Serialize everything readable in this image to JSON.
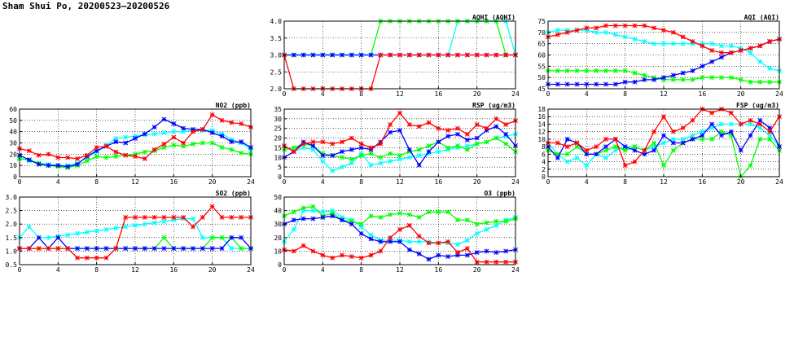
{
  "page": {
    "title": "Sham Shui Po, 20200523–20200526"
  },
  "colors": {
    "red": "#ff0000",
    "blue": "#0000ff",
    "green": "#00ff00",
    "cyan": "#00ffff",
    "grid": "#000000"
  },
  "chart_data": [
    {
      "id": "aqhi",
      "type": "line",
      "title": "AQHI (AQHI)",
      "xlim": [
        0,
        24
      ],
      "ylim": [
        2.0,
        4.0
      ],
      "xticks": [
        "0",
        "4",
        "8",
        "12",
        "16",
        "20",
        "24"
      ],
      "yticks": [
        "2.0",
        "2.5",
        "3.0",
        "3.5",
        "4.0"
      ],
      "x": [
        0,
        1,
        2,
        3,
        4,
        5,
        6,
        7,
        8,
        9,
        10,
        11,
        12,
        13,
        14,
        15,
        16,
        17,
        18,
        19,
        20,
        21,
        22,
        23,
        24
      ],
      "series": [
        {
          "color": "cyan",
          "values": [
            3,
            3,
            3,
            3,
            3,
            3,
            3,
            3,
            3,
            3,
            3,
            3,
            3,
            3,
            3,
            3,
            3,
            3,
            4,
            4,
            4,
            4,
            4,
            4,
            3
          ]
        },
        {
          "color": "green",
          "values": [
            3,
            3,
            3,
            3,
            3,
            3,
            3,
            3,
            3,
            3,
            4,
            4,
            4,
            4,
            4,
            4,
            4,
            4,
            4,
            4,
            4,
            4,
            4,
            3,
            3
          ]
        },
        {
          "color": "blue",
          "values": [
            3,
            3,
            3,
            3,
            3,
            3,
            3,
            3,
            3,
            3,
            3,
            3,
            3,
            3,
            3,
            3,
            3,
            3,
            3,
            3,
            3,
            3,
            3,
            3,
            3
          ]
        },
        {
          "color": "red",
          "values": [
            3,
            2,
            2,
            2,
            2,
            2,
            2,
            2,
            2,
            2,
            3,
            3,
            3,
            3,
            3,
            3,
            3,
            3,
            3,
            3,
            3,
            3,
            3,
            3,
            3
          ]
        }
      ]
    },
    {
      "id": "aqi",
      "type": "line",
      "title": "AQI (AQI)",
      "xlim": [
        0,
        24
      ],
      "ylim": [
        45,
        75
      ],
      "xticks": [
        "0",
        "4",
        "8",
        "12",
        "16",
        "20",
        "24"
      ],
      "yticks": [
        "45",
        "50",
        "55",
        "60",
        "65",
        "70",
        "75"
      ],
      "x": [
        0,
        1,
        2,
        3,
        4,
        5,
        6,
        7,
        8,
        9,
        10,
        11,
        12,
        13,
        14,
        15,
        16,
        17,
        18,
        19,
        20,
        21,
        22,
        23,
        24
      ],
      "series": [
        {
          "color": "cyan",
          "values": [
            70,
            71,
            71,
            71,
            71,
            70,
            70,
            69,
            68,
            67,
            66,
            65,
            65,
            65,
            65,
            65,
            65,
            65,
            64,
            64,
            63,
            61,
            57,
            54,
            53
          ]
        },
        {
          "color": "green",
          "values": [
            53,
            53,
            53,
            53,
            53,
            53,
            53,
            53,
            53,
            52,
            51,
            50,
            49,
            49,
            49,
            49,
            50,
            50,
            50,
            50,
            49,
            48,
            48,
            48,
            48
          ]
        },
        {
          "color": "blue",
          "values": [
            47,
            47,
            47,
            47,
            47,
            47,
            47,
            47,
            48,
            48,
            49,
            49,
            50,
            51,
            52,
            53,
            55,
            57,
            59,
            61,
            62,
            63,
            64,
            66,
            67
          ]
        },
        {
          "color": "red",
          "values": [
            68,
            69,
            70,
            71,
            72,
            72,
            73,
            73,
            73,
            73,
            73,
            72,
            71,
            70,
            68,
            66,
            64,
            62,
            61,
            61,
            62,
            63,
            64,
            66,
            67
          ]
        }
      ]
    },
    {
      "id": "no2",
      "type": "line",
      "title": "NO2 (ppb)",
      "xlim": [
        0,
        24
      ],
      "ylim": [
        0,
        60
      ],
      "xticks": [
        "0",
        "4",
        "8",
        "12",
        "16",
        "20",
        "24"
      ],
      "yticks": [
        "0",
        "10",
        "20",
        "30",
        "40",
        "50",
        "60"
      ],
      "x": [
        0,
        1,
        2,
        3,
        4,
        5,
        6,
        7,
        8,
        9,
        10,
        11,
        12,
        13,
        14,
        15,
        16,
        17,
        18,
        19,
        20,
        21,
        22,
        23,
        24
      ],
      "series": [
        {
          "color": "cyan",
          "values": [
            17,
            14,
            12,
            11,
            10,
            10,
            12,
            17,
            22,
            28,
            34,
            35,
            36,
            37,
            38,
            39,
            40,
            40,
            41,
            41,
            41,
            38,
            33,
            30,
            24
          ]
        },
        {
          "color": "green",
          "values": [
            16,
            15,
            12,
            10,
            9,
            8,
            10,
            14,
            18,
            17,
            18,
            19,
            20,
            22,
            23,
            26,
            28,
            27,
            29,
            30,
            30,
            26,
            24,
            21,
            20
          ]
        },
        {
          "color": "blue",
          "values": [
            19,
            15,
            11,
            10,
            10,
            9,
            11,
            18,
            23,
            27,
            31,
            30,
            34,
            38,
            44,
            51,
            47,
            43,
            42,
            42,
            39,
            36,
            31,
            31,
            26
          ]
        },
        {
          "color": "red",
          "values": [
            25,
            23,
            19,
            20,
            17,
            17,
            16,
            19,
            26,
            27,
            22,
            19,
            18,
            16,
            24,
            29,
            35,
            30,
            40,
            42,
            55,
            50,
            48,
            47,
            44
          ]
        }
      ]
    },
    {
      "id": "rsp",
      "type": "line",
      "title": "RSP (ug/m3)",
      "xlim": [
        0,
        24
      ],
      "ylim": [
        0,
        35
      ],
      "xticks": [
        "0",
        "4",
        "8",
        "12",
        "16",
        "20",
        "24"
      ],
      "yticks": [
        "0",
        "5",
        "10",
        "15",
        "20",
        "25",
        "30",
        "35"
      ],
      "x": [
        0,
        1,
        2,
        3,
        4,
        5,
        6,
        7,
        8,
        9,
        10,
        11,
        12,
        13,
        14,
        15,
        16,
        17,
        18,
        19,
        20,
        21,
        22,
        23,
        24
      ],
      "series": [
        {
          "color": "cyan",
          "values": [
            16,
            13,
            15,
            14,
            8,
            3,
            5,
            7,
            12,
            6,
            7,
            8,
            9,
            10,
            11,
            12,
            13,
            14,
            15,
            16,
            17,
            18,
            20,
            21,
            22
          ]
        },
        {
          "color": "green",
          "values": [
            14,
            15,
            17,
            16,
            12,
            11,
            10,
            9,
            11,
            12,
            10,
            12,
            11,
            13,
            14,
            16,
            18,
            15,
            16,
            14,
            17,
            18,
            20,
            17,
            13
          ]
        },
        {
          "color": "blue",
          "values": [
            10,
            13,
            18,
            16,
            11,
            11,
            13,
            14,
            15,
            14,
            18,
            23,
            24,
            14,
            6,
            13,
            18,
            21,
            22,
            19,
            20,
            24,
            26,
            22,
            16
          ]
        },
        {
          "color": "red",
          "values": [
            16,
            13,
            17,
            18,
            18,
            17,
            18,
            20,
            17,
            15,
            17,
            27,
            33,
            27,
            26,
            28,
            25,
            24,
            25,
            22,
            27,
            25,
            30,
            27,
            29
          ]
        }
      ]
    },
    {
      "id": "fsp",
      "type": "line",
      "title": "FSP (ug/m3)",
      "xlim": [
        0,
        24
      ],
      "ylim": [
        0,
        18
      ],
      "xticks": [
        "0",
        "4",
        "8",
        "12",
        "16",
        "20",
        "24"
      ],
      "yticks": [
        "0",
        "2",
        "4",
        "6",
        "8",
        "10",
        "12",
        "14",
        "16",
        "18"
      ],
      "x": [
        0,
        1,
        2,
        3,
        4,
        5,
        6,
        7,
        8,
        9,
        10,
        11,
        12,
        13,
        14,
        15,
        16,
        17,
        18,
        19,
        20,
        21,
        22,
        23,
        24
      ],
      "series": [
        {
          "color": "cyan",
          "values": [
            9,
            6,
            4,
            5,
            3,
            6,
            5,
            7,
            8,
            8,
            7,
            8,
            9,
            10,
            10,
            11,
            12,
            13,
            14,
            14,
            14,
            14,
            13,
            11,
            8
          ]
        },
        {
          "color": "green",
          "values": [
            7,
            6,
            6,
            8,
            6,
            6,
            7,
            8,
            7,
            8,
            7,
            9,
            3,
            7,
            9,
            10,
            10,
            10,
            12,
            11,
            0,
            3,
            10,
            10,
            7
          ]
        },
        {
          "color": "blue",
          "values": [
            8,
            5,
            10,
            9,
            6,
            6,
            8,
            10,
            8,
            7,
            6,
            7,
            11,
            9,
            9,
            10,
            11,
            14,
            11,
            12,
            7,
            11,
            15,
            13,
            8
          ]
        },
        {
          "color": "red",
          "values": [
            9,
            9,
            8,
            9,
            7,
            8,
            10,
            10,
            3,
            4,
            7,
            12,
            16,
            12,
            13,
            15,
            18,
            17,
            18,
            17,
            14,
            15,
            14,
            12,
            16
          ]
        }
      ]
    },
    {
      "id": "so2",
      "type": "line",
      "title": "SO2 (ppb)",
      "xlim": [
        0,
        24
      ],
      "ylim": [
        0.5,
        3.0
      ],
      "xticks": [
        "0",
        "4",
        "8",
        "12",
        "16",
        "20",
        "24"
      ],
      "yticks": [
        "0.5",
        "1.0",
        "1.5",
        "2.0",
        "2.5",
        "3.0"
      ],
      "x": [
        0,
        1,
        2,
        3,
        4,
        5,
        6,
        7,
        8,
        9,
        10,
        11,
        12,
        13,
        14,
        15,
        16,
        17,
        18,
        19,
        20,
        21,
        22,
        23,
        24
      ],
      "series": [
        {
          "color": "cyan",
          "values": [
            1.5,
            1.9,
            1.5,
            1.5,
            1.55,
            1.6,
            1.65,
            1.7,
            1.75,
            1.8,
            1.85,
            1.9,
            1.95,
            2.0,
            2.05,
            2.1,
            2.15,
            2.2,
            2.2,
            1.5,
            1.5,
            1.5,
            1.1,
            1.1,
            1.1
          ]
        },
        {
          "color": "green",
          "values": [
            1.1,
            1.1,
            1.1,
            1.1,
            1.1,
            1.1,
            1.1,
            1.1,
            1.1,
            1.1,
            1.1,
            1.1,
            1.1,
            1.1,
            1.1,
            1.5,
            1.1,
            1.1,
            1.1,
            1.1,
            1.5,
            1.5,
            1.5,
            1.1,
            1.1
          ]
        },
        {
          "color": "blue",
          "values": [
            1.1,
            1.1,
            1.5,
            1.1,
            1.5,
            1.1,
            1.1,
            1.1,
            1.1,
            1.1,
            1.1,
            1.1,
            1.1,
            1.1,
            1.1,
            1.1,
            1.1,
            1.1,
            1.1,
            1.1,
            1.1,
            1.1,
            1.5,
            1.5,
            1.1
          ]
        },
        {
          "color": "red",
          "values": [
            1.1,
            1.1,
            1.1,
            1.1,
            1.1,
            1.1,
            0.75,
            0.75,
            0.75,
            0.75,
            1.1,
            2.25,
            2.25,
            2.25,
            2.25,
            2.25,
            2.25,
            2.25,
            1.9,
            2.25,
            2.65,
            2.25,
            2.25,
            2.25,
            2.25
          ]
        }
      ]
    },
    {
      "id": "o3",
      "type": "line",
      "title": "O3 (ppb)",
      "xlim": [
        0,
        24
      ],
      "ylim": [
        0,
        50
      ],
      "xticks": [
        "0",
        "4",
        "8",
        "12",
        "16",
        "20",
        "24"
      ],
      "yticks": [
        "0",
        "10",
        "20",
        "30",
        "40",
        "50"
      ],
      "x": [
        0,
        1,
        2,
        3,
        4,
        5,
        6,
        7,
        8,
        9,
        10,
        11,
        12,
        13,
        14,
        15,
        16,
        17,
        18,
        19,
        20,
        21,
        22,
        23,
        24
      ],
      "series": [
        {
          "color": "cyan",
          "values": [
            17,
            26,
            40,
            40,
            39,
            40,
            35,
            33,
            28,
            22,
            18,
            18,
            18,
            17,
            17,
            17,
            16,
            16,
            15,
            18,
            23,
            26,
            29,
            33,
            35
          ]
        },
        {
          "color": "green",
          "values": [
            36,
            39,
            42,
            43,
            36,
            38,
            33,
            32,
            30,
            36,
            35,
            37,
            38,
            37,
            35,
            39,
            39,
            39,
            33,
            33,
            30,
            31,
            32,
            32,
            34
          ]
        },
        {
          "color": "blue",
          "values": [
            30,
            33,
            34,
            34,
            35,
            36,
            33,
            30,
            23,
            19,
            17,
            17,
            17,
            11,
            8,
            4,
            7,
            6,
            7,
            7,
            9,
            10,
            9,
            10,
            11
          ]
        },
        {
          "color": "red",
          "values": [
            11,
            10,
            14,
            10,
            7,
            5,
            7,
            6,
            5,
            7,
            10,
            20,
            26,
            29,
            21,
            16,
            16,
            17,
            9,
            12,
            2,
            2,
            2,
            2,
            2
          ]
        }
      ]
    }
  ]
}
